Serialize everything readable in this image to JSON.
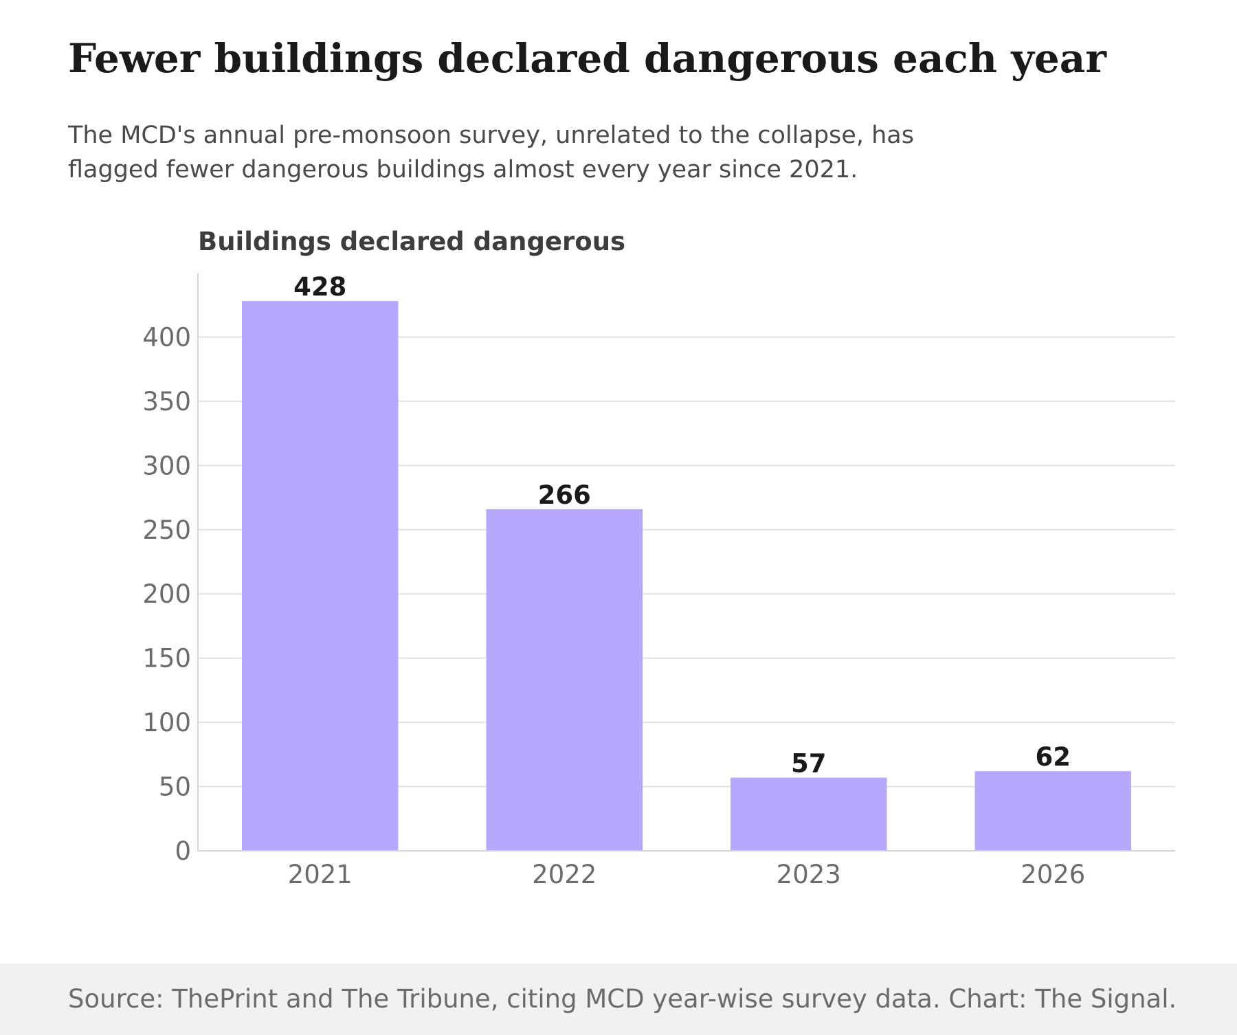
{
  "header": {
    "title": "Fewer buildings declared dangerous each year",
    "subtitle": "The MCD's annual pre-monsoon survey, unrelated to the collapse, has flagged fewer dangerous buildings almost every year since 2021."
  },
  "footer": {
    "source": "Source: ThePrint and The Tribune, citing MCD year-wise survey data. Chart: The Signal."
  },
  "chart_data": {
    "type": "bar",
    "title": "Fewer buildings declared dangerous each year",
    "subtitle": "The MCD's annual pre-monsoon survey, unrelated to the collapse, has flagged fewer dangerous buildings almost every year since 2021.",
    "ylabel": "Buildings declared dangerous",
    "xlabel": "",
    "categories": [
      "2021",
      "2022",
      "2023",
      "2026"
    ],
    "values": [
      428,
      266,
      57,
      62
    ],
    "data_labels": [
      "428",
      "266",
      "57",
      "62"
    ],
    "ylim": [
      0,
      450
    ],
    "yticks": [
      0,
      50,
      100,
      150,
      200,
      250,
      300,
      350,
      400
    ],
    "grid": true,
    "bar_color": "#b8a8fd",
    "gridline_color": "#e2e2e2",
    "legend": "none"
  }
}
